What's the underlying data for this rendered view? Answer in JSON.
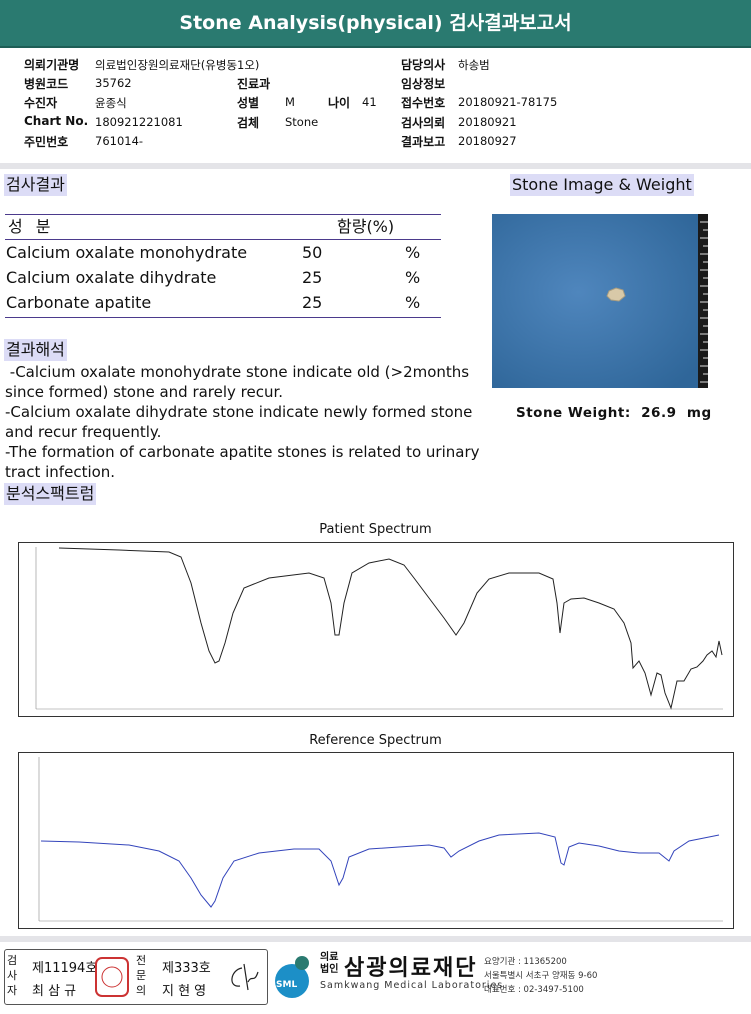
{
  "header": {
    "title": "Stone Analysis(physical) 검사결과보고서"
  },
  "info": {
    "institution": {
      "label": "의뢰기관명",
      "value": "의료법인장원의료재단(유병동1오)"
    },
    "doctor": {
      "label": "담당의사",
      "value": "하송범"
    },
    "hospital_code": {
      "label": "병원코드",
      "value": "35762"
    },
    "department": {
      "label": "진료과"
    },
    "clinical_info": {
      "label": "임상정보"
    },
    "patient": {
      "label": "수진자",
      "value": "윤종식"
    },
    "sex": {
      "label": "성별",
      "value": "M"
    },
    "age": {
      "label": "나이",
      "value": "41"
    },
    "receipt_no": {
      "label": "접수번호",
      "value": "20180921-78175"
    },
    "chart_no": {
      "label": "Chart No.",
      "value": "180921221081"
    },
    "specimen": {
      "label": "검체",
      "value": "Stone"
    },
    "request_date": {
      "label": "검사의뢰",
      "value": "20180921"
    },
    "resident_no": {
      "label": "주민번호",
      "value": "761014-"
    },
    "report_date": {
      "label": "결과보고",
      "value": "20180927"
    }
  },
  "results": {
    "title": "검사결과",
    "columns": [
      "성 분",
      "함량(%)"
    ],
    "rows": [
      {
        "name": "Calcium oxalate monohydrate",
        "amount": 50,
        "unit": "%"
      },
      {
        "name": "Calcium oxalate dihydrate",
        "amount": 25,
        "unit": "%"
      },
      {
        "name": "Carbonate apatite",
        "amount": 25,
        "unit": "%"
      }
    ]
  },
  "stone": {
    "title": "Stone Image & Weight",
    "weight_label": "Stone Weight:",
    "weight": 26.9,
    "unit": "mg"
  },
  "interpretation": {
    "title": "결과해석",
    "paragraphs": [
      " -Calcium oxalate monohydrate stone indicate old (>2months since formed) stone and rarely recur.",
      "-Calcium oxalate dihydrate stone indicate newly formed stone and recur frequently.",
      "-The formation of carbonate apatite stones is related to urinary tract infection."
    ]
  },
  "spectrum": {
    "title": "분석스팩트럼",
    "charts": [
      {
        "title": "Patient Spectrum"
      },
      {
        "title": "Reference Spectrum"
      }
    ]
  },
  "footer": {
    "signers": [
      {
        "role": "검사자",
        "license": "제11194호",
        "name": "최 삼 규"
      },
      {
        "role": "전문의",
        "license": "제333호",
        "name": "지 현 영"
      }
    ],
    "org": {
      "abbr": "SML",
      "prefix": "의료법인",
      "name": "삼광의료재단",
      "english": "Samkwang Medical Laboratories",
      "lines": [
        "요양기관 : 11365200",
        "서울특별시 서초구 양재동 9-60",
        "대표번호 : 02-3497-5100"
      ]
    }
  }
}
